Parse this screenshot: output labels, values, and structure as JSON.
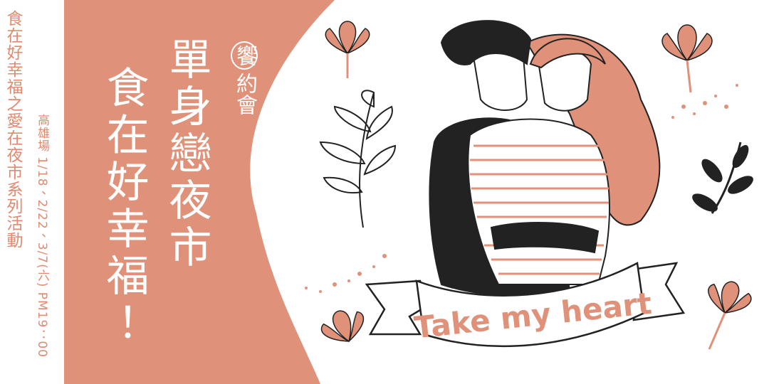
{
  "series_title": "食在好幸福之愛在夜市系列活動",
  "event_info": "高雄場 1/18、2/22、3/7(六) PM19：00",
  "brand": {
    "badge": "饗",
    "rest": "約會"
  },
  "headline": [
    "單身戀夜市",
    "食在好幸福！"
  ],
  "ribbon_text": "Take my heart"
}
